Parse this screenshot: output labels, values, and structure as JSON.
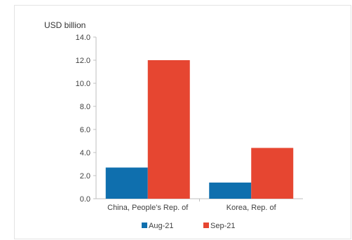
{
  "chart_data": {
    "type": "bar",
    "title": "",
    "ylabel": "USD billion",
    "xlabel": "",
    "ylim": [
      0,
      14
    ],
    "yticks": [
      "0.0",
      "2.0",
      "4.0",
      "6.0",
      "8.0",
      "10.0",
      "12.0",
      "14.0"
    ],
    "grid": false,
    "legend_position": "bottom",
    "categories": [
      "China, People's Rep. of",
      "Korea, Rep. of"
    ],
    "series": [
      {
        "name": "Aug-21",
        "color": "#0f6fae",
        "values": [
          2.7,
          1.4
        ]
      },
      {
        "name": "Sep-21",
        "color": "#e64631",
        "values": [
          12.0,
          4.4
        ]
      }
    ]
  }
}
